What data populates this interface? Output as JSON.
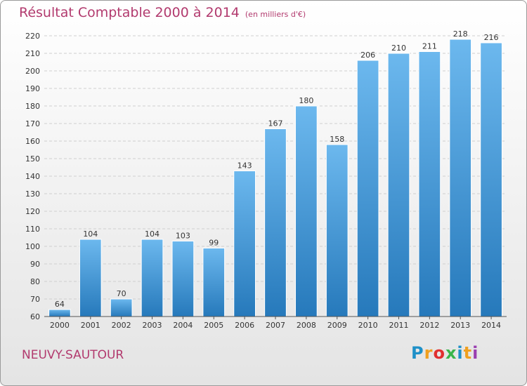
{
  "title": "Résultat Comptable 2000 à 2014",
  "subtitle": "(en milliers d'€)",
  "town": "NEUVY-SAUTOUR",
  "brand": {
    "text": "Proxiti",
    "letter_colors": [
      "#1e90c8",
      "#f0a020",
      "#e03030",
      "#39b54a",
      "#1e90c8",
      "#f0a020",
      "#9a3fb0"
    ]
  },
  "colors": {
    "bar_light": "#6cb8ee",
    "bar_dark": "#2679bb",
    "text_accent": "#b23a6e"
  },
  "chart_data": {
    "type": "bar",
    "categories": [
      "2000",
      "2001",
      "2002",
      "2003",
      "2004",
      "2005",
      "2006",
      "2007",
      "2008",
      "2009",
      "2010",
      "2011",
      "2012",
      "2013",
      "2014"
    ],
    "values": [
      64,
      104,
      70,
      104,
      103,
      99,
      143,
      167,
      180,
      158,
      206,
      210,
      211,
      218,
      216
    ],
    "title": "Résultat Comptable 2000 à 2014",
    "ylim": [
      60,
      220
    ],
    "yticks": [
      60,
      70,
      80,
      90,
      100,
      110,
      120,
      130,
      140,
      150,
      160,
      170,
      180,
      190,
      200,
      210,
      220
    ],
    "grid": true,
    "data_labels": true
  }
}
